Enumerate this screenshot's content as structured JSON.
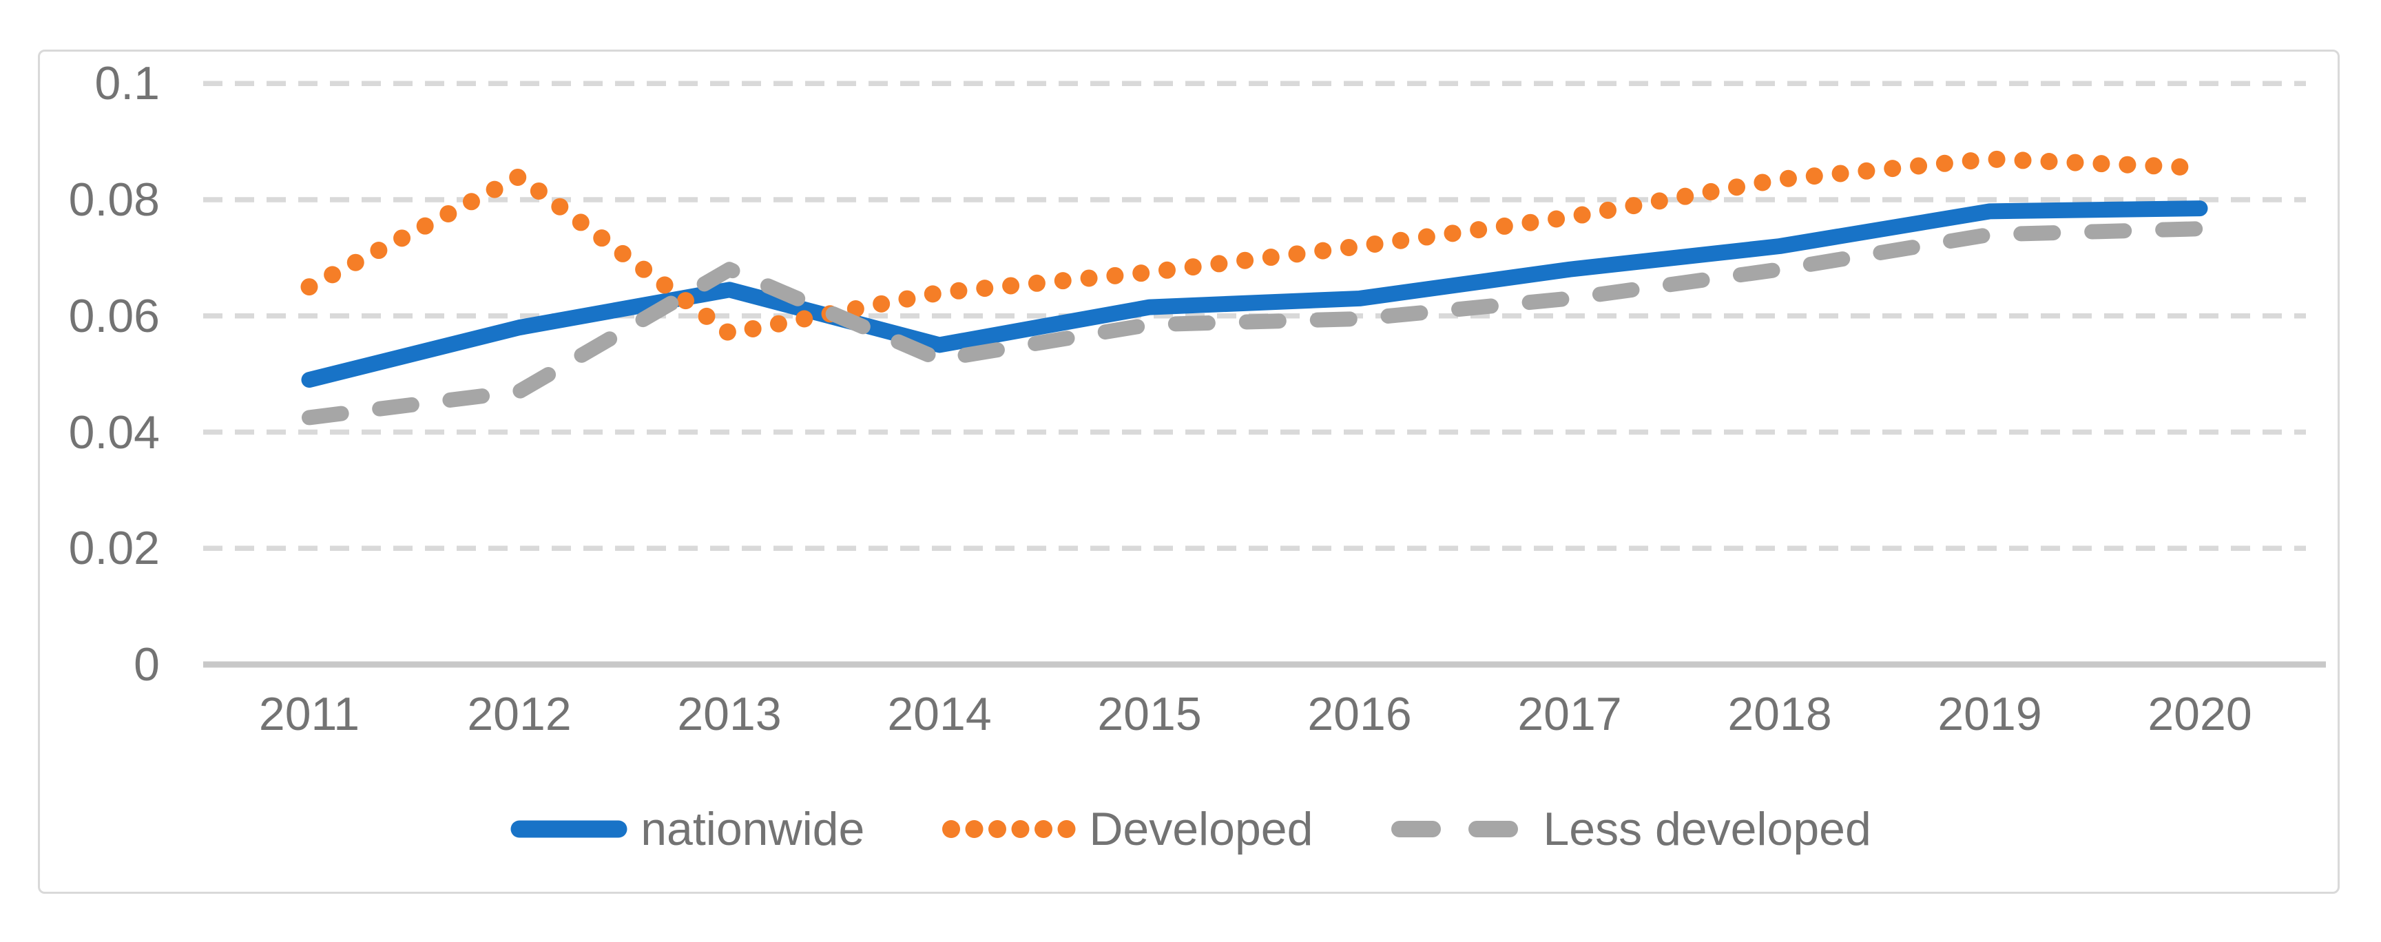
{
  "chart_data": {
    "type": "line",
    "title": "",
    "xlabel": "",
    "ylabel": "",
    "categories": [
      "2011",
      "2012",
      "2013",
      "2014",
      "2015",
      "2016",
      "2017",
      "2018",
      "2019",
      "2020"
    ],
    "y_ticks": [
      0,
      0.02,
      0.04,
      0.06,
      0.08,
      0.1
    ],
    "y_tick_labels_top_down": [
      "0.1",
      "0.08",
      "0.06",
      "0.04",
      "0.02",
      "0"
    ],
    "ylim": [
      0,
      0.1
    ],
    "grid": "horizontal dashed gridlines",
    "legend_position": "bottom-center",
    "series": [
      {
        "name": "nationwide",
        "style": "solid",
        "color": "#1873C7",
        "values": [
          0.049,
          0.058,
          0.0645,
          0.055,
          0.0615,
          0.063,
          0.068,
          0.072,
          0.078,
          0.0785
        ]
      },
      {
        "name": "Developed",
        "style": "dotted",
        "color": "#F57E27",
        "values": [
          0.065,
          0.084,
          0.057,
          0.064,
          0.0675,
          0.072,
          0.077,
          0.0835,
          0.087,
          0.0855
        ]
      },
      {
        "name": "Less developed",
        "style": "dashed",
        "color": "#A6A6A6",
        "values": [
          0.0425,
          0.047,
          0.068,
          0.0525,
          0.0585,
          0.0595,
          0.063,
          0.068,
          0.074,
          0.075
        ]
      }
    ]
  },
  "colors": {
    "gridline": "#D9D9D9",
    "axis_line": "#C8C8C8",
    "tick_text": "#737373",
    "frame_border": "#D9D9D9",
    "background": "#FFFFFF"
  }
}
